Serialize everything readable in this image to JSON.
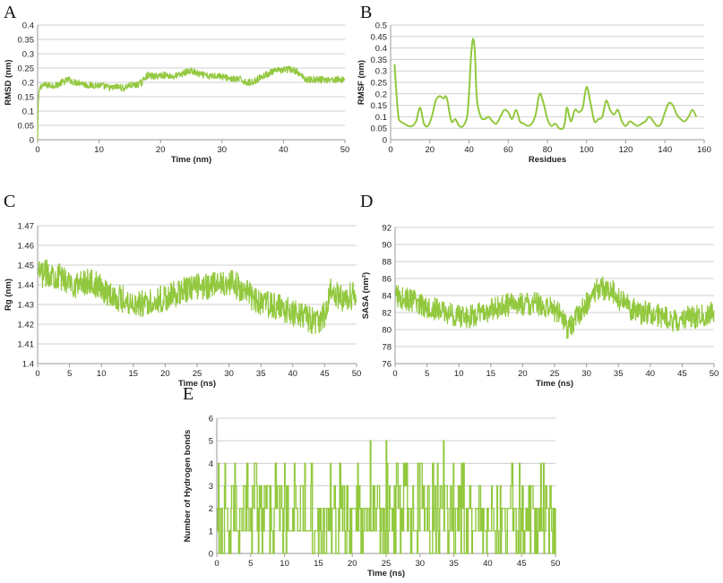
{
  "chart_data": [
    {
      "panel": "A",
      "type": "line",
      "xlabel": "Time (nm)",
      "ylabel": "RMSD (nm)",
      "xlim": [
        0,
        50
      ],
      "ylim": [
        0,
        0.4
      ],
      "x_ticks": [
        0,
        10,
        20,
        30,
        40,
        50
      ],
      "y_ticks": [
        0,
        0.05,
        0.1,
        0.15,
        0.2,
        0.25,
        0.3,
        0.35,
        0.4
      ],
      "x_tick_labels": [
        "0",
        "10",
        "20",
        "30",
        "40",
        "50"
      ],
      "y_tick_labels": [
        "0",
        "0.05",
        "0.1",
        "0.15",
        "0.2",
        "0.25",
        "0.3",
        "0.35",
        "0.4"
      ],
      "grid": "horizontal",
      "color": "#92c83e",
      "series": [
        {
          "x": [
            0,
            0.1,
            0.3,
            0.6,
            1,
            2,
            3,
            4,
            5,
            6,
            7,
            8,
            9,
            10,
            11,
            12,
            13,
            14,
            15,
            16,
            17,
            17.5,
            18,
            19,
            20,
            21,
            22,
            23,
            24,
            25,
            26,
            27,
            28,
            29,
            30,
            31,
            32,
            33,
            34,
            35,
            36,
            37,
            38,
            39,
            40,
            41,
            42,
            43,
            44,
            45,
            46,
            47,
            48,
            49,
            50
          ],
          "y": [
            0.0,
            0.13,
            0.17,
            0.19,
            0.19,
            0.19,
            0.19,
            0.2,
            0.21,
            0.2,
            0.2,
            0.19,
            0.19,
            0.19,
            0.185,
            0.18,
            0.185,
            0.18,
            0.19,
            0.19,
            0.2,
            0.22,
            0.225,
            0.22,
            0.225,
            0.225,
            0.22,
            0.225,
            0.235,
            0.24,
            0.23,
            0.225,
            0.22,
            0.225,
            0.22,
            0.215,
            0.21,
            0.21,
            0.2,
            0.2,
            0.215,
            0.225,
            0.235,
            0.24,
            0.245,
            0.245,
            0.24,
            0.22,
            0.21,
            0.21,
            0.21,
            0.21,
            0.21,
            0.21,
            0.21
          ],
          "noise": 0.012
        }
      ]
    },
    {
      "panel": "B",
      "type": "line",
      "xlabel": "Residues",
      "ylabel": "RMSF (nm)",
      "xlim": [
        0,
        160
      ],
      "ylim": [
        0,
        0.5
      ],
      "x_ticks": [
        0,
        20,
        40,
        60,
        80,
        100,
        120,
        140,
        160
      ],
      "y_ticks": [
        0,
        0.05,
        0.1,
        0.15,
        0.2,
        0.25,
        0.3,
        0.35,
        0.4,
        0.45,
        0.5
      ],
      "x_tick_labels": [
        "0",
        "20",
        "40",
        "60",
        "80",
        "100",
        "120",
        "140",
        "160"
      ],
      "y_tick_labels": [
        "0",
        "0.05",
        "0.1",
        "0.15",
        "0.2",
        "0.25",
        "0.3",
        "0.35",
        "0.4",
        "0.45",
        "0.5"
      ],
      "grid": "horizontal",
      "color": "#92c83e",
      "series": [
        {
          "x": [
            2,
            3,
            4,
            5,
            7,
            9,
            11,
            13,
            15,
            17,
            19,
            21,
            23,
            25,
            27,
            28,
            29,
            31,
            33,
            35,
            37,
            39,
            40,
            41,
            42,
            43,
            44,
            46,
            48,
            50,
            52,
            54,
            56,
            58,
            60,
            62,
            64,
            66,
            68,
            70,
            72,
            74,
            76,
            78,
            80,
            82,
            84,
            86,
            88,
            89,
            90,
            92,
            94,
            96,
            98,
            100,
            102,
            104,
            106,
            108,
            110,
            112,
            114,
            116,
            118,
            120,
            122,
            124,
            126,
            128,
            130,
            132,
            134,
            136,
            138,
            140,
            142,
            144,
            146,
            148,
            150,
            152,
            154,
            156
          ],
          "y": [
            0.33,
            0.2,
            0.1,
            0.08,
            0.07,
            0.06,
            0.06,
            0.08,
            0.14,
            0.07,
            0.06,
            0.1,
            0.17,
            0.19,
            0.18,
            0.19,
            0.17,
            0.08,
            0.09,
            0.06,
            0.06,
            0.1,
            0.2,
            0.36,
            0.44,
            0.38,
            0.18,
            0.1,
            0.09,
            0.1,
            0.08,
            0.07,
            0.1,
            0.13,
            0.12,
            0.09,
            0.13,
            0.08,
            0.07,
            0.06,
            0.07,
            0.11,
            0.2,
            0.16,
            0.09,
            0.06,
            0.07,
            0.05,
            0.05,
            0.08,
            0.14,
            0.08,
            0.13,
            0.12,
            0.14,
            0.23,
            0.16,
            0.08,
            0.09,
            0.1,
            0.17,
            0.13,
            0.11,
            0.13,
            0.08,
            0.06,
            0.08,
            0.07,
            0.06,
            0.07,
            0.08,
            0.1,
            0.08,
            0.06,
            0.07,
            0.12,
            0.16,
            0.15,
            0.11,
            0.09,
            0.08,
            0.1,
            0.13,
            0.1
          ]
        }
      ]
    },
    {
      "panel": "C",
      "type": "line",
      "xlabel": "Time (ns)",
      "ylabel": "Rg (nm)",
      "xlim": [
        0,
        50
      ],
      "ylim": [
        1.4,
        1.47
      ],
      "x_ticks": [
        0,
        5,
        10,
        15,
        20,
        25,
        30,
        35,
        40,
        45,
        50
      ],
      "y_ticks": [
        1.4,
        1.41,
        1.42,
        1.43,
        1.44,
        1.45,
        1.46,
        1.47
      ],
      "x_tick_labels": [
        "0",
        "5",
        "10",
        "15",
        "20",
        "25",
        "30",
        "35",
        "40",
        "45",
        "50"
      ],
      "y_tick_labels": [
        "1.4",
        "1.41",
        "1.42",
        "1.43",
        "1.44",
        "1.45",
        "1.46",
        "1.47"
      ],
      "grid": "horizontal",
      "color": "#92c83e",
      "series": [
        {
          "x": [
            0,
            2,
            4,
            6,
            8,
            10,
            12,
            14,
            16,
            18,
            20,
            22,
            24,
            26,
            28,
            30,
            32,
            34,
            36,
            38,
            40,
            42,
            44,
            45,
            46,
            48,
            50
          ],
          "y": [
            1.445,
            1.446,
            1.443,
            1.44,
            1.442,
            1.438,
            1.434,
            1.432,
            1.43,
            1.432,
            1.433,
            1.436,
            1.438,
            1.439,
            1.44,
            1.442,
            1.438,
            1.432,
            1.43,
            1.428,
            1.426,
            1.424,
            1.42,
            1.425,
            1.437,
            1.433,
            1.435
          ],
          "noise": 0.007
        }
      ]
    },
    {
      "panel": "D",
      "type": "line",
      "xlabel": "Time (ns)",
      "ylabel": "SASA (nm²)",
      "xlim": [
        0,
        50
      ],
      "ylim": [
        76,
        92
      ],
      "x_ticks": [
        0,
        5,
        10,
        15,
        20,
        25,
        30,
        35,
        40,
        45,
        50
      ],
      "y_ticks": [
        76,
        78,
        80,
        82,
        84,
        86,
        88,
        90,
        92
      ],
      "x_tick_labels": [
        "0",
        "5",
        "10",
        "15",
        "20",
        "25",
        "30",
        "35",
        "40",
        "45",
        "50"
      ],
      "y_tick_labels": [
        "76",
        "78",
        "80",
        "82",
        "84",
        "86",
        "88",
        "90",
        "92"
      ],
      "grid": "horizontal",
      "color": "#92c83e",
      "series": [
        {
          "x": [
            0,
            2,
            4,
            6,
            8,
            10,
            12,
            14,
            16,
            18,
            20,
            22,
            24,
            26,
            27,
            28,
            30,
            32,
            34,
            36,
            38,
            40,
            42,
            44,
            46,
            48,
            50
          ],
          "y": [
            84,
            83.5,
            83,
            82.5,
            82,
            81.5,
            81.5,
            82,
            82.5,
            83,
            83,
            83,
            82.5,
            82,
            80,
            81,
            83,
            85,
            84.5,
            83,
            82,
            82,
            81.5,
            81,
            81.5,
            81.5,
            82
          ],
          "noise": 1.4
        }
      ]
    },
    {
      "panel": "E",
      "type": "line",
      "xlabel": "Time (ns)",
      "ylabel": "Number of Hydrogen bonds",
      "xlim": [
        0,
        50
      ],
      "ylim": [
        0,
        6
      ],
      "x_ticks": [
        0,
        5,
        10,
        15,
        20,
        25,
        30,
        35,
        40,
        45,
        50
      ],
      "y_ticks": [
        0,
        1,
        2,
        3,
        4,
        5,
        6
      ],
      "x_tick_labels": [
        "0",
        "5",
        "10",
        "15",
        "20",
        "25",
        "30",
        "35",
        "40",
        "45",
        "50"
      ],
      "y_tick_labels": [
        "0",
        "1",
        "2",
        "3",
        "4",
        "5",
        "6"
      ],
      "grid": "horizontal",
      "color": "#92c83e",
      "series": [
        {
          "values_are_integers": true,
          "range": [
            0,
            5
          ],
          "typical_values": [
            1,
            2
          ],
          "peaks": [
            [
              22.7,
              5
            ],
            [
              25,
              5
            ],
            [
              33.5,
              5
            ]
          ]
        }
      ]
    }
  ]
}
